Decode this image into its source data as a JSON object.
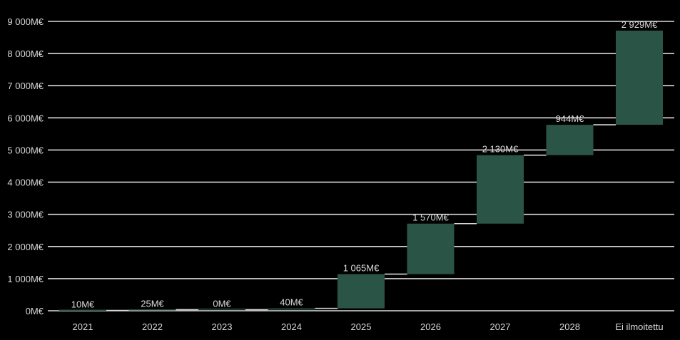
{
  "colors": {
    "background": "#000000",
    "bar": "#2a5446",
    "gridline": "#d9d9d9",
    "connector": "#d9d9d9",
    "text": "#d9d9d9"
  },
  "chart_data": {
    "type": "bar",
    "subtype": "waterfall",
    "title": "",
    "xlabel": "",
    "ylabel": "",
    "categories": [
      "2021",
      "2022",
      "2023",
      "2024",
      "2025",
      "2026",
      "2027",
      "2028",
      "Ei ilmoitettu"
    ],
    "values": [
      10,
      25,
      0,
      40,
      1065,
      1570,
      2130,
      944,
      2929
    ],
    "data_labels": [
      "10M€",
      "25M€",
      "0M€",
      "40M€",
      "1 065M€",
      "1 570M€",
      "2 130M€",
      "944M€",
      "2 929M€"
    ],
    "ylim": [
      0,
      9000
    ],
    "yticks": [
      0,
      1000,
      2000,
      3000,
      4000,
      5000,
      6000,
      7000,
      8000,
      9000
    ],
    "ytick_labels": [
      "0M€",
      "1 000M€",
      "2 000M€",
      "3 000M€",
      "4 000M€",
      "5 000M€",
      "6 000M€",
      "7 000M€",
      "8 000M€",
      "9 000M€"
    ],
    "grid": true,
    "legend": "none"
  }
}
